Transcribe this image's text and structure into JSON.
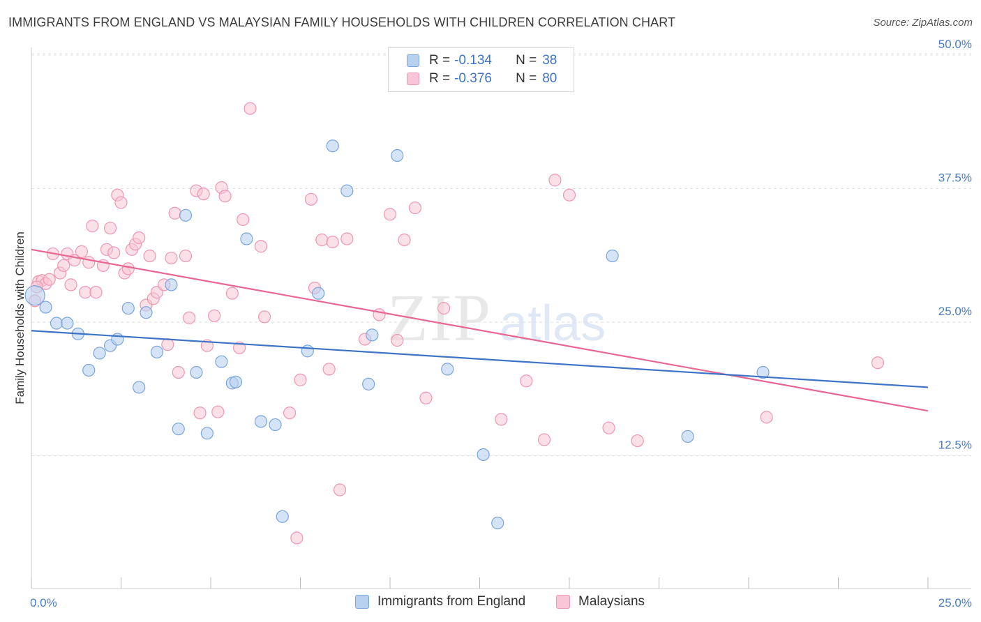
{
  "header": {
    "title": "IMMIGRANTS FROM ENGLAND VS MALAYSIAN FAMILY HOUSEHOLDS WITH CHILDREN CORRELATION CHART",
    "source": "Source: ZipAtlas.com"
  },
  "watermark": {
    "zip": "ZIP",
    "atlas": "atlas"
  },
  "legend": {
    "series1": {
      "r_label": "R = ",
      "r_value": "-0.134",
      "n_label": "N = ",
      "n_value": "38"
    },
    "series2": {
      "r_label": "R = ",
      "r_value": "-0.376",
      "n_label": "N = ",
      "n_value": "80"
    }
  },
  "bottom_legend": {
    "series1": "Immigrants from England",
    "series2": "Malaysians"
  },
  "colors": {
    "series1_fill": "#b7d0f0",
    "series1_stroke": "#7aa5dd",
    "series1_line": "#3d74c6",
    "series2_fill": "#f8c6d6",
    "series2_stroke": "#ee97b3",
    "series2_line": "#e8668f",
    "grid": "#dddddd",
    "axis_tick_text": "#4a7cc4"
  },
  "chart_data": {
    "type": "scatter",
    "title": "IMMIGRANTS FROM ENGLAND VS MALAYSIAN FAMILY HOUSEHOLDS WITH CHILDREN CORRELATION CHART",
    "xlabel": "",
    "ylabel": "Family Households with Children",
    "xlim": [
      0,
      25
    ],
    "ylim": [
      0,
      50
    ],
    "x_tick_labels": [
      "0.0%",
      "25.0%"
    ],
    "y_ticks": [
      12.5,
      25.0,
      37.5,
      50.0
    ],
    "y_tick_labels": [
      "12.5%",
      "25.0%",
      "37.5%",
      "50.0%"
    ],
    "grid": true,
    "legend_position": "top-center",
    "series": [
      {
        "name": "Immigrants from England",
        "r": -0.134,
        "n": 38,
        "trend": {
          "x": [
            0,
            25
          ],
          "y": [
            24.2,
            18.9
          ]
        },
        "points": [
          [
            0.1,
            27.5
          ],
          [
            0.4,
            26.4
          ],
          [
            0.7,
            24.9
          ],
          [
            1.0,
            24.9
          ],
          [
            1.3,
            23.9
          ],
          [
            1.6,
            20.5
          ],
          [
            1.9,
            22.1
          ],
          [
            2.2,
            22.8
          ],
          [
            2.4,
            23.4
          ],
          [
            2.7,
            26.3
          ],
          [
            3.0,
            18.9
          ],
          [
            3.2,
            25.9
          ],
          [
            3.5,
            22.2
          ],
          [
            3.9,
            28.5
          ],
          [
            4.1,
            15.0
          ],
          [
            4.3,
            35.0
          ],
          [
            4.6,
            20.3
          ],
          [
            4.9,
            14.6
          ],
          [
            5.3,
            21.3
          ],
          [
            5.6,
            19.3
          ],
          [
            5.7,
            19.4
          ],
          [
            6.0,
            32.8
          ],
          [
            6.4,
            15.7
          ],
          [
            6.8,
            15.4
          ],
          [
            7.0,
            6.8
          ],
          [
            7.7,
            22.3
          ],
          [
            8.0,
            27.7
          ],
          [
            8.4,
            41.5
          ],
          [
            8.8,
            37.3
          ],
          [
            9.4,
            19.2
          ],
          [
            9.5,
            23.8
          ],
          [
            10.2,
            40.6
          ],
          [
            11.6,
            20.6
          ],
          [
            12.6,
            12.6
          ],
          [
            13.0,
            6.2
          ],
          [
            16.2,
            31.2
          ],
          [
            18.3,
            14.3
          ],
          [
            20.4,
            20.3
          ]
        ]
      },
      {
        "name": "Malaysians",
        "r": -0.376,
        "n": 80,
        "trend": {
          "x": [
            0,
            25
          ],
          "y": [
            31.8,
            16.7
          ]
        },
        "points": [
          [
            0.1,
            27.0
          ],
          [
            0.2,
            28.8
          ],
          [
            0.3,
            28.9
          ],
          [
            0.4,
            28.6
          ],
          [
            0.5,
            29.0
          ],
          [
            0.6,
            31.4
          ],
          [
            0.8,
            29.6
          ],
          [
            0.9,
            30.3
          ],
          [
            1.0,
            31.4
          ],
          [
            1.1,
            28.5
          ],
          [
            1.2,
            30.8
          ],
          [
            1.4,
            31.6
          ],
          [
            1.5,
            27.8
          ],
          [
            1.6,
            30.6
          ],
          [
            1.7,
            34.0
          ],
          [
            1.8,
            27.8
          ],
          [
            2.0,
            30.3
          ],
          [
            2.1,
            31.8
          ],
          [
            2.2,
            33.8
          ],
          [
            2.3,
            31.5
          ],
          [
            2.4,
            36.9
          ],
          [
            2.5,
            36.2
          ],
          [
            2.6,
            29.6
          ],
          [
            2.7,
            30.0
          ],
          [
            2.8,
            31.8
          ],
          [
            2.9,
            32.3
          ],
          [
            3.0,
            32.9
          ],
          [
            3.2,
            26.6
          ],
          [
            3.3,
            31.2
          ],
          [
            3.4,
            27.2
          ],
          [
            3.5,
            27.8
          ],
          [
            3.7,
            28.5
          ],
          [
            3.8,
            22.9
          ],
          [
            3.9,
            31.0
          ],
          [
            4.0,
            35.2
          ],
          [
            4.1,
            20.3
          ],
          [
            4.3,
            31.2
          ],
          [
            4.4,
            25.4
          ],
          [
            4.6,
            37.3
          ],
          [
            4.7,
            16.5
          ],
          [
            4.8,
            37.0
          ],
          [
            4.9,
            22.8
          ],
          [
            5.1,
            25.6
          ],
          [
            5.2,
            16.6
          ],
          [
            5.3,
            37.6
          ],
          [
            5.4,
            36.8
          ],
          [
            5.6,
            27.7
          ],
          [
            5.8,
            22.6
          ],
          [
            5.9,
            34.6
          ],
          [
            6.1,
            45.0
          ],
          [
            6.4,
            32.1
          ],
          [
            6.5,
            25.5
          ],
          [
            7.2,
            16.5
          ],
          [
            7.4,
            4.8
          ],
          [
            7.5,
            19.6
          ],
          [
            7.8,
            36.5
          ],
          [
            7.9,
            28.2
          ],
          [
            8.1,
            32.7
          ],
          [
            8.3,
            20.6
          ],
          [
            8.4,
            32.5
          ],
          [
            8.6,
            9.3
          ],
          [
            8.8,
            32.8
          ],
          [
            9.3,
            23.4
          ],
          [
            9.7,
            25.7
          ],
          [
            10.0,
            35.1
          ],
          [
            10.2,
            23.3
          ],
          [
            10.4,
            32.7
          ],
          [
            10.7,
            35.7
          ],
          [
            11.0,
            17.9
          ],
          [
            11.5,
            26.3
          ],
          [
            13.1,
            15.9
          ],
          [
            13.8,
            19.5
          ],
          [
            14.3,
            14.0
          ],
          [
            14.6,
            38.3
          ],
          [
            15.0,
            36.9
          ],
          [
            16.1,
            15.1
          ],
          [
            16.9,
            13.9
          ],
          [
            20.5,
            16.1
          ],
          [
            23.6,
            21.2
          ],
          [
            0.15,
            28.3
          ]
        ]
      }
    ]
  }
}
